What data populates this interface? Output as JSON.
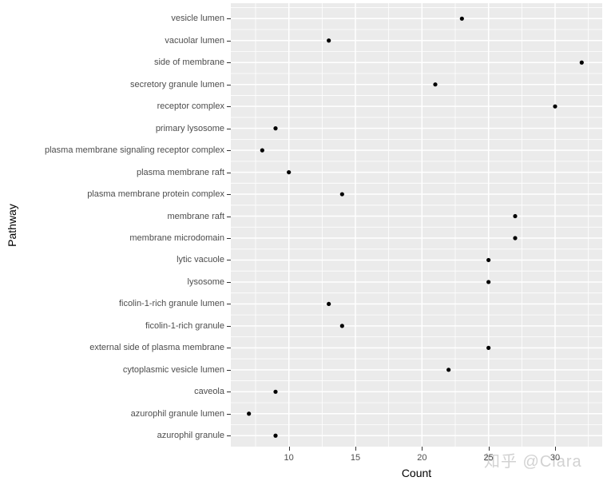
{
  "figure": {
    "watermark": "知乎 @Clara"
  },
  "chart_data": {
    "type": "scatter",
    "subtype": "horizontal-dot-plot",
    "title": "",
    "xlabel": "Count",
    "ylabel": "Pathway",
    "categories": [
      "vesicle lumen",
      "vacuolar lumen",
      "side of membrane",
      "secretory granule lumen",
      "receptor complex",
      "primary lysosome",
      "plasma membrane signaling receptor complex",
      "plasma membrane raft",
      "plasma membrane protein complex",
      "membrane raft",
      "membrane microdomain",
      "lytic vacuole",
      "lysosome",
      "ficolin-1-rich granule lumen",
      "ficolin-1-rich granule",
      "external side of plasma membrane",
      "cytoplasmic vesicle lumen",
      "caveola",
      "azurophil granule lumen",
      "azurophil granule"
    ],
    "values": [
      23,
      13,
      32,
      21,
      30,
      9,
      8,
      10,
      14,
      27,
      27,
      25,
      25,
      13,
      14,
      25,
      22,
      9,
      7,
      9
    ],
    "x_ticks": [
      10,
      15,
      20,
      25,
      30
    ],
    "xlim": [
      5.64,
      33.54
    ],
    "grid": "major and minor, white on gray panel",
    "legend": "none",
    "colors": {
      "panel_bg": "#ebebeb",
      "grid_major": "#ffffff",
      "grid_minor": "#ffffff",
      "point": "#000000",
      "tick_label": "#4d4d4d",
      "tick_mark": "#333333",
      "axis_title": "#000000",
      "watermark": "#d2d2d2"
    }
  }
}
